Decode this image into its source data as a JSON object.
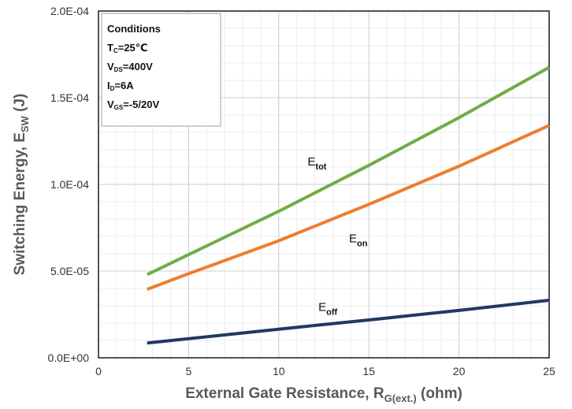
{
  "chart_data": {
    "type": "line",
    "xlabel": {
      "main": "External Gate Resistance, R",
      "sub": "G(ext.)",
      "unit": " (ohm)"
    },
    "ylabel": {
      "main": "Switching Energy, E",
      "sub": "SW",
      "unit": " (J)"
    },
    "xlim": [
      0,
      25
    ],
    "ylim": [
      0,
      0.0002
    ],
    "x_ticks": [
      0,
      5,
      10,
      15,
      20,
      25
    ],
    "x_tick_labels": [
      "0",
      "5",
      "10",
      "15",
      "20",
      "25"
    ],
    "y_ticks": [
      0,
      5e-05,
      0.0001,
      0.00015,
      0.0002
    ],
    "y_tick_labels": [
      "0.0E+00",
      "5.0E-05",
      "1.0E-04",
      "1.5E-04",
      "2.0E-04"
    ],
    "grid": true,
    "series": [
      {
        "name": "E_tot",
        "label_main": "E",
        "label_sub": "tot",
        "color": "#70ad47",
        "x": [
          2.7,
          5,
          10,
          15,
          20,
          25
        ],
        "y": [
          4.8e-05,
          5.95e-05,
          8.45e-05,
          0.000111,
          0.0001385,
          0.0001675
        ]
      },
      {
        "name": "E_on",
        "label_main": "E",
        "label_sub": "on",
        "color": "#ed7d31",
        "x": [
          2.7,
          5,
          10,
          15,
          20,
          25
        ],
        "y": [
          3.95e-05,
          4.85e-05,
          6.75e-05,
          8.85e-05,
          0.0001105,
          0.000134
        ]
      },
      {
        "name": "E_off",
        "label_main": "E",
        "label_sub": "off",
        "color": "#203864",
        "x": [
          2.7,
          5,
          10,
          15,
          20,
          25
        ],
        "y": [
          8.5e-06,
          1.1e-05,
          1.65e-05,
          2.18e-05,
          2.73e-05,
          3.32e-05
        ]
      }
    ],
    "series_label_positions": [
      {
        "x": 11.6,
        "y": 0.000111
      },
      {
        "x": 13.9,
        "y": 6.65e-05
      },
      {
        "x": 12.2,
        "y": 2.7e-05
      }
    ],
    "conditions": {
      "title": "Conditions",
      "lines": [
        {
          "pre": "T",
          "sub": "C",
          "post": "=25℃"
        },
        {
          "pre": "V",
          "sub": "DS",
          "post": "=400V"
        },
        {
          "pre": "I",
          "sub": "D",
          "post": "=6A"
        },
        {
          "pre": "V",
          "sub": "GS",
          "post": "=-5/20V"
        }
      ]
    }
  }
}
